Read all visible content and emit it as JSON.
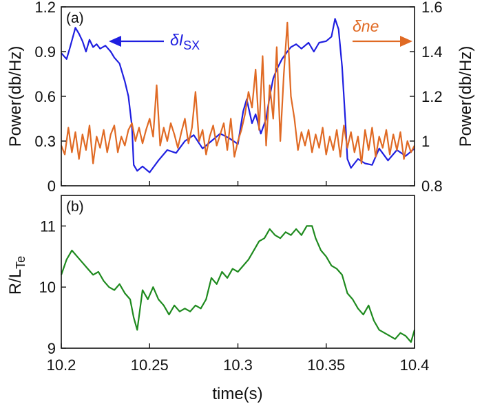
{
  "chart_data": [
    {
      "type": "line",
      "panel_label": "(a)",
      "x_range": [
        10.2,
        10.4
      ],
      "y_left": {
        "label": "Power(db/Hz)",
        "ylim": [
          0,
          1.2
        ],
        "ticks": [
          "0",
          "0.3",
          "0.6",
          "0.9",
          "1.2"
        ]
      },
      "y_right": {
        "label": "Power(db/Hz)",
        "ylim": [
          0.8,
          1.6
        ],
        "ticks": [
          "0.8",
          "1",
          "1.2",
          "1.4",
          "1.6"
        ]
      },
      "series": [
        {
          "name_prefix": "δI",
          "name_sub": "SX",
          "axis": "left",
          "color": "#1f1fe0",
          "x": [
            10.2,
            10.203,
            10.205,
            10.208,
            10.21,
            10.212,
            10.214,
            10.216,
            10.218,
            10.22,
            10.222,
            10.225,
            10.228,
            10.23,
            10.233,
            10.236,
            10.238,
            10.24,
            10.241,
            10.243,
            10.246,
            10.25,
            10.255,
            10.26,
            10.265,
            10.27,
            10.275,
            10.28,
            10.285,
            10.29,
            10.295,
            10.3,
            10.303,
            10.305,
            10.308,
            10.31,
            10.313,
            10.316,
            10.318,
            10.32,
            10.322,
            10.325,
            10.328,
            10.33,
            10.333,
            10.336,
            10.34,
            10.343,
            10.346,
            10.35,
            10.353,
            10.355,
            10.357,
            10.359,
            10.361,
            10.362,
            10.364,
            10.368,
            10.372,
            10.376,
            10.38,
            10.385,
            10.39,
            10.395,
            10.4
          ],
          "y": [
            0.89,
            0.85,
            0.93,
            1.06,
            1.02,
            0.97,
            0.9,
            0.98,
            0.93,
            0.95,
            0.92,
            0.94,
            0.9,
            0.86,
            0.82,
            0.7,
            0.6,
            0.4,
            0.14,
            0.1,
            0.13,
            0.09,
            0.17,
            0.24,
            0.22,
            0.3,
            0.34,
            0.25,
            0.3,
            0.35,
            0.32,
            0.28,
            0.5,
            0.58,
            0.42,
            0.48,
            0.35,
            0.45,
            0.6,
            0.72,
            0.78,
            0.85,
            0.9,
            0.93,
            0.95,
            0.92,
            0.96,
            0.9,
            0.96,
            0.97,
            1.0,
            1.12,
            1.05,
            0.8,
            0.4,
            0.18,
            0.12,
            0.18,
            0.15,
            0.14,
            0.25,
            0.17,
            0.24,
            0.2,
            0.25
          ]
        },
        {
          "name": "δne",
          "axis": "right",
          "color": "#e06a24",
          "x": [
            10.2,
            10.202,
            10.204,
            10.206,
            10.208,
            10.21,
            10.212,
            10.214,
            10.216,
            10.218,
            10.22,
            10.222,
            10.224,
            10.226,
            10.228,
            10.23,
            10.232,
            10.234,
            10.236,
            10.238,
            10.24,
            10.242,
            10.244,
            10.246,
            10.248,
            10.25,
            10.252,
            10.254,
            10.256,
            10.258,
            10.26,
            10.262,
            10.264,
            10.266,
            10.268,
            10.27,
            10.272,
            10.274,
            10.276,
            10.278,
            10.28,
            10.282,
            10.284,
            10.286,
            10.288,
            10.29,
            10.292,
            10.294,
            10.296,
            10.298,
            10.3,
            10.302,
            10.304,
            10.306,
            10.308,
            10.31,
            10.312,
            10.314,
            10.316,
            10.318,
            10.32,
            10.322,
            10.324,
            10.326,
            10.328,
            10.33,
            10.332,
            10.334,
            10.336,
            10.338,
            10.34,
            10.342,
            10.344,
            10.346,
            10.348,
            10.35,
            10.352,
            10.354,
            10.356,
            10.358,
            10.36,
            10.362,
            10.364,
            10.366,
            10.368,
            10.37,
            10.372,
            10.374,
            10.376,
            10.378,
            10.38,
            10.382,
            10.384,
            10.386,
            10.388,
            10.39,
            10.392,
            10.394,
            10.396,
            10.398,
            10.4
          ],
          "y": [
            0.98,
            0.94,
            1.06,
            0.95,
            1.04,
            0.92,
            1.03,
            0.96,
            1.07,
            0.9,
            1.02,
            0.97,
            1.05,
            0.95,
            1.03,
            1.07,
            0.95,
            1.02,
            0.98,
            1.05,
            1.08,
            1.0,
            1.06,
            0.99,
            1.05,
            1.1,
            1.02,
            1.25,
            0.98,
            1.06,
            1.0,
            1.08,
            1.03,
            0.97,
            1.04,
            1.1,
            0.99,
            1.06,
            1.22,
            1.0,
            1.05,
            0.94,
            1.02,
            1.07,
            0.98,
            1.03,
            1.08,
            0.96,
            1.1,
            0.93,
            1.0,
            1.05,
            1.12,
            1.22,
            1.15,
            1.32,
            1.05,
            1.38,
            0.98,
            1.25,
            1.1,
            1.42,
            1.0,
            1.3,
            1.53,
            1.2,
            1.1,
            0.96,
            1.04,
            0.98,
            1.05,
            0.95,
            1.03,
            0.97,
            1.06,
            0.94,
            1.02,
            0.96,
            1.05,
            0.93,
            1.07,
            0.97,
            1.04,
            0.95,
            1.02,
            0.9,
            1.05,
            0.96,
            1.06,
            0.93,
            1.02,
            0.97,
            1.05,
            0.94,
            1.03,
            0.96,
            1.04,
            0.92,
            1.0,
            0.95,
            0.98
          ]
        }
      ],
      "annotations": [
        {
          "target": "left",
          "color": "#1f1fe0",
          "text_prefix": "δI",
          "text_sub": "SX"
        },
        {
          "target": "right",
          "color": "#e06a24",
          "text": "δne"
        }
      ]
    },
    {
      "type": "line",
      "panel_label": "(b)",
      "xlabel": "time(s)",
      "xlim": [
        10.2,
        10.4
      ],
      "x_ticks": [
        "10.2",
        "10.25",
        "10.3",
        "10.35",
        "10.4"
      ],
      "ylabel_main": "R/L",
      "ylabel_sub": "Te",
      "ylim": [
        9,
        11.5
      ],
      "y_ticks": [
        "9",
        "10",
        "11"
      ],
      "series": [
        {
          "color": "#1e8a1e",
          "x": [
            10.2,
            10.203,
            10.206,
            10.209,
            10.212,
            10.215,
            10.218,
            10.221,
            10.224,
            10.227,
            10.23,
            10.233,
            10.236,
            10.239,
            10.241,
            10.243,
            10.246,
            10.249,
            10.252,
            10.255,
            10.258,
            10.261,
            10.264,
            10.267,
            10.27,
            10.273,
            10.276,
            10.279,
            10.282,
            10.285,
            10.288,
            10.291,
            10.294,
            10.297,
            10.3,
            10.303,
            10.306,
            10.309,
            10.312,
            10.315,
            10.318,
            10.321,
            10.324,
            10.327,
            10.33,
            10.333,
            10.336,
            10.339,
            10.342,
            10.344,
            10.347,
            10.35,
            10.353,
            10.356,
            10.359,
            10.362,
            10.365,
            10.368,
            10.371,
            10.374,
            10.377,
            10.38,
            10.383,
            10.386,
            10.389,
            10.392,
            10.395,
            10.398,
            10.4
          ],
          "y": [
            10.2,
            10.45,
            10.6,
            10.5,
            10.4,
            10.3,
            10.2,
            10.25,
            10.1,
            10.0,
            9.95,
            10.05,
            9.9,
            9.8,
            9.5,
            9.3,
            9.95,
            9.8,
            10.0,
            9.8,
            9.7,
            9.55,
            9.7,
            9.6,
            9.65,
            9.6,
            9.7,
            9.65,
            9.8,
            10.15,
            10.05,
            10.25,
            10.15,
            10.3,
            10.25,
            10.35,
            10.45,
            10.6,
            10.75,
            10.8,
            10.95,
            10.85,
            10.8,
            10.9,
            10.85,
            10.95,
            10.85,
            11.0,
            11.0,
            10.8,
            10.6,
            10.5,
            10.35,
            10.3,
            10.2,
            9.9,
            9.8,
            9.65,
            9.55,
            9.7,
            9.45,
            9.3,
            9.25,
            9.2,
            9.15,
            9.25,
            9.2,
            9.1,
            9.3
          ]
        }
      ]
    }
  ]
}
